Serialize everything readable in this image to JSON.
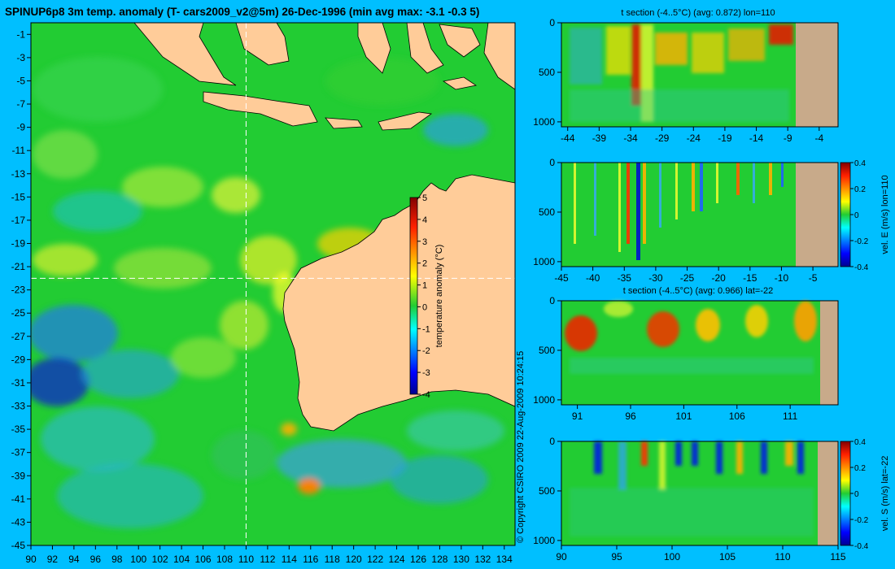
{
  "title": "SPINUP6p8 3m temp. anomaly (T- cars2009_v2@5m) 26-Dec-1996 (min avg max: -3.1 -0.3 5)",
  "copyright": "© Copyright CSIRO 2009   22-Aug-2009 10:24:15",
  "colors": {
    "background": "#00bfff",
    "land": "#ffcc99",
    "section_land": "#c8aa8a",
    "ocean_base": "#22cc33",
    "crosshair": "#ffffff"
  },
  "chart_data": [
    {
      "name": "map",
      "type": "heatmap",
      "title": "SPINUP6p8 3m temp. anomaly (T- cars2009_v2@5m) 26-Dec-1996 (min avg max: -3.1 -0.3 5)",
      "xlim": [
        90,
        135
      ],
      "ylim": [
        -45,
        0
      ],
      "x_ticks": [
        90,
        92,
        94,
        96,
        98,
        100,
        102,
        104,
        106,
        108,
        110,
        112,
        114,
        116,
        118,
        120,
        122,
        124,
        126,
        128,
        130,
        132,
        134
      ],
      "y_ticks": [
        -1,
        -3,
        -5,
        -7,
        -9,
        -11,
        -13,
        -15,
        -17,
        -19,
        -21,
        -23,
        -25,
        -27,
        -29,
        -31,
        -33,
        -35,
        -37,
        -39,
        -41,
        -43,
        -45
      ],
      "section_lon": 110,
      "section_lat": -22,
      "colorbar": {
        "label": "temperature anomaly (°C)",
        "range": [
          -4,
          5
        ],
        "ticks": [
          -4,
          -3,
          -2,
          -1,
          0,
          1,
          2,
          3,
          4,
          5
        ]
      }
    },
    {
      "name": "t-section-lon",
      "type": "heatmap",
      "title": "t section (-4..5°C) (avg: 0.872) lon=110",
      "xlim": [
        -45,
        -1
      ],
      "ylim": [
        1050,
        0
      ],
      "x_ticks": [
        -44,
        -39,
        -34,
        -29,
        -24,
        -19,
        -14,
        -9,
        -4
      ],
      "y_ticks": [
        0,
        500,
        1000
      ],
      "land_from": -8
    },
    {
      "name": "vel-e-section-lon",
      "type": "heatmap",
      "title": "",
      "xlim": [
        -45,
        -1
      ],
      "ylim": [
        1050,
        0
      ],
      "x_ticks": [
        -45,
        -40,
        -35,
        -30,
        -25,
        -20,
        -15,
        -10,
        -5
      ],
      "y_ticks": [
        0,
        500,
        1000
      ],
      "land_from": -8,
      "colorbar": {
        "label": "vel. E (m/s) lon=110",
        "range": [
          -0.4,
          0.4
        ],
        "ticks": [
          -0.4,
          -0.2,
          0,
          0.2,
          0.4
        ]
      }
    },
    {
      "name": "t-section-lat",
      "type": "heatmap",
      "title": "t section (-4..5°C) (avg: 0.966) lat=-22",
      "xlim": [
        89.5,
        115.5
      ],
      "ylim": [
        1050,
        0
      ],
      "x_ticks": [
        91,
        96,
        101,
        106,
        111
      ],
      "y_ticks": [
        0,
        500,
        1000
      ],
      "land_from": 114
    },
    {
      "name": "vel-s-section-lat",
      "type": "heatmap",
      "title": "",
      "xlim": [
        90,
        115
      ],
      "ylim": [
        1050,
        0
      ],
      "x_ticks": [
        90,
        95,
        100,
        105,
        110,
        115
      ],
      "y_ticks": [
        0,
        500,
        1000
      ],
      "land_from": 113.6,
      "colorbar": {
        "label": "vel. S (m/s) lat=-22",
        "range": [
          -0.4,
          0.4
        ],
        "ticks": [
          -0.4,
          -0.2,
          0,
          0.2,
          0.4
        ]
      }
    }
  ]
}
